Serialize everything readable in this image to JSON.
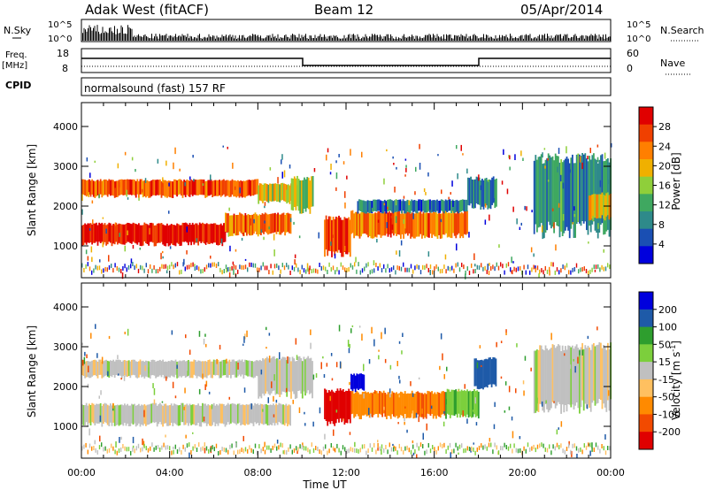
{
  "header": {
    "station": "Adak West (fitACF)",
    "beam": "Beam 12",
    "date": "05/Apr/2014"
  },
  "status_panels": {
    "nsky_label": "N.Sky",
    "nsky_ticks": [
      "10^5",
      "10^0"
    ],
    "nsearch_label": "N.Search",
    "nsearch_ticks": [
      "10^5",
      "10^0"
    ],
    "freq_label_top": "Freq.",
    "freq_label_bottom": "[MHz]",
    "freq_ticks": [
      "18",
      "8"
    ],
    "nave_label": "Nave",
    "nave_ticks": [
      "60",
      "0"
    ],
    "cpid_label": "CPID",
    "cpid_text": "normalsound (fast) 157 RF"
  },
  "colors": {
    "power": [
      "#0000dd",
      "#1a4fb3",
      "#2e8a8a",
      "#3fa860",
      "#8fcf3a",
      "#f0b000",
      "#ff7f00",
      "#f04000",
      "#e00000"
    ],
    "velocity": [
      "#e00000",
      "#f24a00",
      "#ff8a00",
      "#ffc060",
      "#c0c0c0",
      "#7ccf3c",
      "#2e9e2e",
      "#1e5aa8",
      "#0000dd"
    ],
    "ground_scatter": "#c0c0c0"
  },
  "chart_data": [
    {
      "type": "heatmap",
      "title": "",
      "xlabel": "Time UT",
      "ylabel": "Slant Range [km]",
      "x_ticks": [
        "00:00",
        "04:00",
        "08:00",
        "12:00",
        "16:00",
        "20:00",
        "00:00"
      ],
      "xlim_hours": [
        0,
        24
      ],
      "y_ticks": [
        "1000",
        "2000",
        "3000",
        "4000"
      ],
      "ylim": [
        200,
        4600
      ],
      "colorbar_label": "Power [dB]",
      "colorbar_ticks": [
        "4",
        "8",
        "12",
        "16",
        "20",
        "24",
        "28"
      ],
      "colorbar_range": [
        0,
        32
      ],
      "bands": [
        {
          "t0": 0,
          "t1": 6.5,
          "r0": 1050,
          "r1": 1550,
          "power": 30
        },
        {
          "t0": 6.5,
          "t1": 9.5,
          "r0": 1300,
          "r1": 1800,
          "power": 24
        },
        {
          "t0": 0,
          "t1": 8,
          "r0": 2250,
          "r1": 2650,
          "power": 26
        },
        {
          "t0": 8,
          "t1": 9.8,
          "r0": 2100,
          "r1": 2550,
          "power": 18
        },
        {
          "t0": 9.5,
          "t1": 10.5,
          "r0": 1900,
          "r1": 2700,
          "power": 16
        },
        {
          "t0": 11,
          "t1": 12.2,
          "r0": 800,
          "r1": 1700,
          "power": 28
        },
        {
          "t0": 12.2,
          "t1": 17.5,
          "r0": 1250,
          "r1": 1850,
          "power": 24
        },
        {
          "t0": 12.5,
          "t1": 17.5,
          "r0": 1850,
          "r1": 2150,
          "power": 8
        },
        {
          "t0": 17.5,
          "t1": 18.8,
          "r0": 2000,
          "r1": 2700,
          "power": 8
        },
        {
          "t0": 20.5,
          "t1": 24,
          "r0": 1400,
          "r1": 3200,
          "power": 10
        },
        {
          "t0": 23,
          "t1": 24,
          "r0": 1700,
          "r1": 2300,
          "power": 20
        }
      ]
    },
    {
      "type": "heatmap",
      "title": "",
      "xlabel": "Time UT",
      "ylabel": "Slant Range [km]",
      "x_ticks": [
        "00:00",
        "04:00",
        "08:00",
        "12:00",
        "16:00",
        "20:00",
        "00:00"
      ],
      "xlim_hours": [
        0,
        24
      ],
      "y_ticks": [
        "1000",
        "2000",
        "3000",
        "4000"
      ],
      "ylim": [
        200,
        4600
      ],
      "colorbar_label": "Velocity [m s^-1]",
      "colorbar_ticks": [
        "200",
        "100",
        "50",
        "15",
        "-15",
        "-50",
        "-100",
        "-200"
      ],
      "colorbar_range": [
        -250,
        250
      ],
      "bands": [
        {
          "t0": 0,
          "t1": 9.5,
          "r0": 1050,
          "r1": 1550,
          "velocity": 0
        },
        {
          "t0": 0,
          "t1": 8,
          "r0": 2250,
          "r1": 2650,
          "velocity": 0
        },
        {
          "t0": 8,
          "t1": 10.5,
          "r0": 1800,
          "r1": 2700,
          "velocity": 0
        },
        {
          "t0": 11,
          "t1": 12.2,
          "r0": 1100,
          "r1": 1900,
          "velocity": -220
        },
        {
          "t0": 12.2,
          "t1": 16.5,
          "r0": 1250,
          "r1": 1850,
          "velocity": -90
        },
        {
          "t0": 16.5,
          "t1": 18,
          "r0": 1250,
          "r1": 1900,
          "velocity": 40
        },
        {
          "t0": 17.8,
          "t1": 18.8,
          "r0": 2000,
          "r1": 2700,
          "velocity": 180
        },
        {
          "t0": 12.2,
          "t1": 12.8,
          "r0": 1900,
          "r1": 2300,
          "velocity": 220
        },
        {
          "t0": 20.5,
          "t1": 24,
          "r0": 1500,
          "r1": 3000,
          "velocity": 0
        }
      ]
    }
  ]
}
